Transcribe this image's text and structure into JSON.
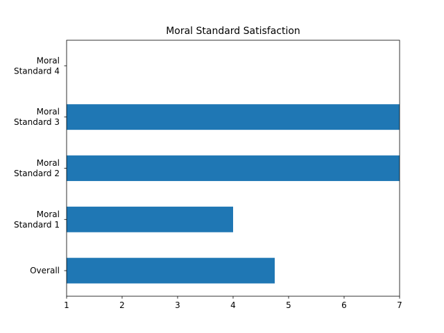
{
  "chart_data": {
    "type": "bar",
    "orientation": "horizontal",
    "title": "Moral Standard Satisfaction",
    "xlabel": "",
    "ylabel": "",
    "xlim": [
      1,
      7
    ],
    "xticks": [
      1,
      2,
      3,
      4,
      5,
      6,
      7
    ],
    "grid": false,
    "legend": "none",
    "categories": [
      [
        "Overall"
      ],
      [
        "Moral",
        "Standard 1"
      ],
      [
        "Moral",
        "Standard 2"
      ],
      [
        "Moral",
        "Standard 3"
      ],
      [
        "Moral",
        "Standard 4"
      ]
    ],
    "values": [
      4.75,
      4,
      7,
      7,
      null
    ],
    "bar_color": "#1f77b4"
  }
}
